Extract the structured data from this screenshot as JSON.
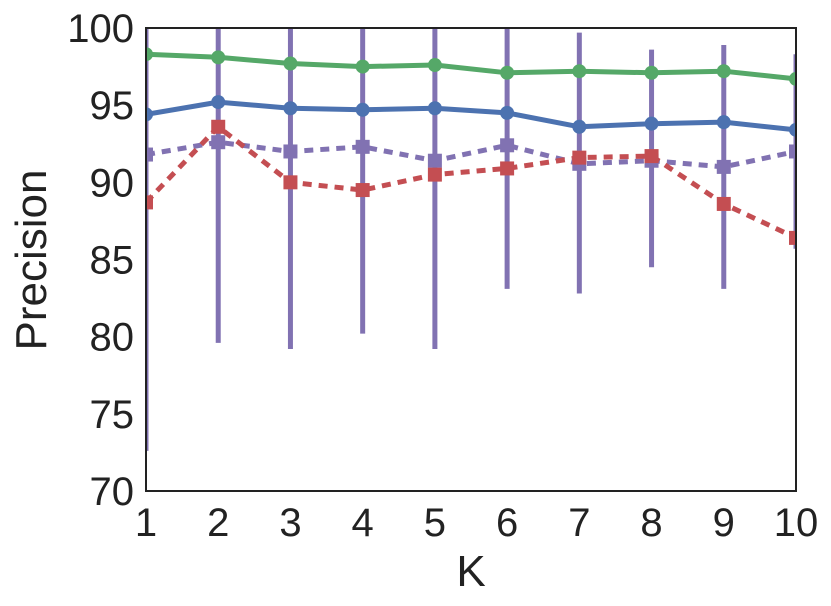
{
  "chart_data": {
    "type": "line",
    "title": "",
    "xlabel": "K",
    "ylabel": "Precision",
    "xlim": [
      1,
      10
    ],
    "ylim": [
      70,
      100
    ],
    "x": [
      1,
      2,
      3,
      4,
      5,
      6,
      7,
      8,
      9,
      10
    ],
    "xticks": [
      "1",
      "2",
      "3",
      "4",
      "5",
      "6",
      "7",
      "8",
      "9",
      "10"
    ],
    "yticks": [
      "70",
      "75",
      "80",
      "85",
      "90",
      "95",
      "100"
    ],
    "grid": false,
    "legend": "none",
    "series": [
      {
        "color": "#55a868",
        "style": "solid",
        "marker": "circle",
        "values": [
          98.3,
          98.1,
          97.7,
          97.5,
          97.6,
          97.1,
          97.2,
          97.1,
          97.2,
          96.7
        ],
        "error_low": [
          null,
          null,
          null,
          null,
          null,
          null,
          null,
          null,
          null,
          null
        ],
        "error_high": [
          null,
          null,
          null,
          null,
          null,
          null,
          null,
          null,
          null,
          null
        ]
      },
      {
        "color": "#4c72b0",
        "style": "solid",
        "marker": "circle",
        "values": [
          94.4,
          95.2,
          94.8,
          94.7,
          94.8,
          94.5,
          93.6,
          93.8,
          93.9,
          93.4
        ],
        "error_low": [
          null,
          null,
          null,
          null,
          null,
          null,
          null,
          null,
          null,
          null
        ],
        "error_high": [
          null,
          null,
          null,
          null,
          null,
          null,
          null,
          null,
          null,
          null
        ]
      },
      {
        "color": "#8172b2",
        "style": "dashed",
        "marker": "square",
        "values": [
          91.8,
          92.6,
          92.0,
          92.3,
          91.4,
          92.4,
          91.2,
          91.4,
          91.0,
          92.0
        ],
        "error_low": [
          72.6,
          79.6,
          79.2,
          80.2,
          79.2,
          83.1,
          82.8,
          84.5,
          83.1,
          85.7
        ],
        "error_high": [
          100,
          100,
          100,
          100,
          100,
          100,
          99.7,
          98.6,
          98.9,
          98.3
        ]
      },
      {
        "color": "#c44e52",
        "style": "dashed",
        "marker": "square",
        "values": [
          88.7,
          93.6,
          90.0,
          89.5,
          90.5,
          90.9,
          91.6,
          91.7,
          88.6,
          86.4
        ],
        "error_low": [
          null,
          null,
          null,
          null,
          null,
          null,
          null,
          null,
          null,
          null
        ],
        "error_high": [
          null,
          null,
          null,
          null,
          null,
          null,
          null,
          null,
          null,
          null
        ]
      }
    ]
  }
}
